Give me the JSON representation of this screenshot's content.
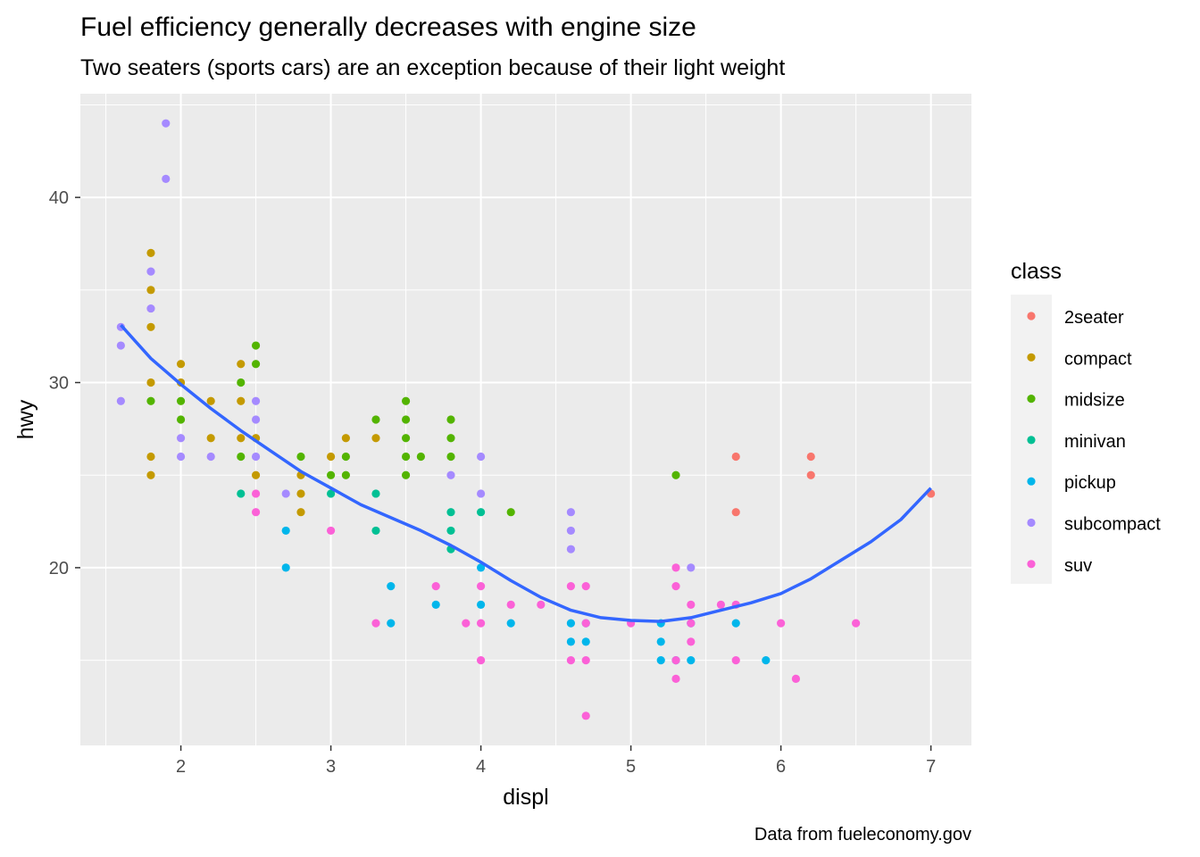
{
  "chart_data": {
    "type": "scatter",
    "title": "Fuel efficiency generally decreases with engine size",
    "subtitle": "Two seaters (sports cars) are an exception because of their light weight",
    "caption": "Data from fueleconomy.gov",
    "xlabel": "displ",
    "ylabel": "hwy",
    "xlim": [
      1.33,
      7.27
    ],
    "ylim": [
      10.4,
      45.6
    ],
    "x_ticks": [
      2,
      3,
      4,
      5,
      6,
      7
    ],
    "y_ticks": [
      20,
      30,
      40
    ],
    "grid": true,
    "background": "#EBEBEB",
    "legend": {
      "title": "class",
      "position": "right"
    },
    "series": [
      {
        "name": "2seater",
        "color": "#F8766D",
        "points": [
          [
            5.7,
            26
          ],
          [
            5.7,
            23
          ],
          [
            6.2,
            26
          ],
          [
            6.2,
            25
          ],
          [
            7.0,
            24
          ]
        ]
      },
      {
        "name": "compact",
        "color": "#C49A00",
        "points": [
          [
            1.8,
            37
          ],
          [
            1.8,
            35
          ],
          [
            1.8,
            33
          ],
          [
            1.8,
            30
          ],
          [
            1.8,
            26
          ],
          [
            1.8,
            25
          ],
          [
            2.0,
            31
          ],
          [
            2.0,
            30
          ],
          [
            2.2,
            29
          ],
          [
            2.2,
            27
          ],
          [
            2.4,
            31
          ],
          [
            2.4,
            29
          ],
          [
            2.4,
            27
          ],
          [
            2.5,
            27
          ],
          [
            2.5,
            25
          ],
          [
            2.8,
            25
          ],
          [
            2.8,
            24
          ],
          [
            2.8,
            23
          ],
          [
            3.0,
            26
          ],
          [
            3.1,
            27
          ],
          [
            3.3,
            27
          ]
        ]
      },
      {
        "name": "midsize",
        "color": "#53B400",
        "points": [
          [
            1.8,
            29
          ],
          [
            2.0,
            29
          ],
          [
            2.0,
            28
          ],
          [
            2.4,
            30
          ],
          [
            2.4,
            26
          ],
          [
            2.5,
            32
          ],
          [
            2.5,
            31
          ],
          [
            2.8,
            26
          ],
          [
            3.0,
            25
          ],
          [
            3.1,
            26
          ],
          [
            3.1,
            25
          ],
          [
            3.3,
            28
          ],
          [
            3.5,
            29
          ],
          [
            3.5,
            28
          ],
          [
            3.5,
            27
          ],
          [
            3.5,
            26
          ],
          [
            3.5,
            25
          ],
          [
            3.6,
            26
          ],
          [
            3.8,
            28
          ],
          [
            3.8,
            27
          ],
          [
            3.8,
            26
          ],
          [
            4.2,
            23
          ],
          [
            5.3,
            25
          ]
        ]
      },
      {
        "name": "minivan",
        "color": "#00C094",
        "points": [
          [
            2.4,
            24
          ],
          [
            3.0,
            24
          ],
          [
            3.3,
            24
          ],
          [
            3.3,
            22
          ],
          [
            3.8,
            23
          ],
          [
            3.8,
            22
          ],
          [
            3.8,
            21
          ],
          [
            4.0,
            23
          ]
        ]
      },
      {
        "name": "pickup",
        "color": "#00B6EB",
        "points": [
          [
            2.7,
            22
          ],
          [
            2.7,
            20
          ],
          [
            3.4,
            19
          ],
          [
            3.4,
            17
          ],
          [
            3.7,
            18
          ],
          [
            4.0,
            20
          ],
          [
            4.0,
            18
          ],
          [
            4.2,
            17
          ],
          [
            4.6,
            17
          ],
          [
            4.6,
            16
          ],
          [
            4.7,
            17
          ],
          [
            4.7,
            16
          ],
          [
            5.2,
            17
          ],
          [
            5.2,
            16
          ],
          [
            5.2,
            15
          ],
          [
            5.3,
            15
          ],
          [
            5.4,
            17
          ],
          [
            5.4,
            15
          ],
          [
            5.7,
            17
          ],
          [
            5.9,
            15
          ]
        ]
      },
      {
        "name": "subcompact",
        "color": "#A58AFF",
        "points": [
          [
            1.6,
            33
          ],
          [
            1.6,
            32
          ],
          [
            1.6,
            29
          ],
          [
            1.8,
            36
          ],
          [
            1.8,
            34
          ],
          [
            1.9,
            44
          ],
          [
            1.9,
            41
          ],
          [
            2.0,
            27
          ],
          [
            2.0,
            26
          ],
          [
            2.2,
            26
          ],
          [
            2.5,
            29
          ],
          [
            2.5,
            28
          ],
          [
            2.5,
            26
          ],
          [
            2.7,
            24
          ],
          [
            3.8,
            25
          ],
          [
            4.0,
            26
          ],
          [
            4.0,
            24
          ],
          [
            4.6,
            23
          ],
          [
            4.6,
            22
          ],
          [
            4.6,
            21
          ],
          [
            5.4,
            20
          ]
        ]
      },
      {
        "name": "suv",
        "color": "#FB61D7",
        "points": [
          [
            2.5,
            24
          ],
          [
            2.5,
            23
          ],
          [
            3.0,
            22
          ],
          [
            3.3,
            17
          ],
          [
            3.7,
            19
          ],
          [
            3.9,
            17
          ],
          [
            4.0,
            19
          ],
          [
            4.0,
            17
          ],
          [
            4.0,
            15
          ],
          [
            4.2,
            18
          ],
          [
            4.4,
            18
          ],
          [
            4.6,
            19
          ],
          [
            4.6,
            15
          ],
          [
            4.7,
            19
          ],
          [
            4.7,
            17
          ],
          [
            4.7,
            15
          ],
          [
            4.7,
            12
          ],
          [
            5.0,
            17
          ],
          [
            5.3,
            20
          ],
          [
            5.3,
            19
          ],
          [
            5.3,
            15
          ],
          [
            5.3,
            14
          ],
          [
            5.4,
            18
          ],
          [
            5.4,
            17
          ],
          [
            5.4,
            16
          ],
          [
            5.6,
            18
          ],
          [
            5.7,
            18
          ],
          [
            5.7,
            15
          ],
          [
            6.0,
            17
          ],
          [
            6.1,
            14
          ],
          [
            6.5,
            17
          ]
        ]
      }
    ],
    "smooth": {
      "color": "#3366FF",
      "points": [
        [
          1.6,
          33.1
        ],
        [
          1.8,
          31.3
        ],
        [
          2.0,
          29.9
        ],
        [
          2.2,
          28.6
        ],
        [
          2.4,
          27.4
        ],
        [
          2.6,
          26.3
        ],
        [
          2.8,
          25.2
        ],
        [
          3.0,
          24.3
        ],
        [
          3.2,
          23.4
        ],
        [
          3.4,
          22.7
        ],
        [
          3.6,
          22.0
        ],
        [
          3.8,
          21.2
        ],
        [
          4.0,
          20.3
        ],
        [
          4.2,
          19.3
        ],
        [
          4.4,
          18.4
        ],
        [
          4.6,
          17.7
        ],
        [
          4.8,
          17.3
        ],
        [
          5.0,
          17.15
        ],
        [
          5.2,
          17.1
        ],
        [
          5.4,
          17.3
        ],
        [
          5.6,
          17.7
        ],
        [
          5.8,
          18.1
        ],
        [
          6.0,
          18.6
        ],
        [
          6.2,
          19.4
        ],
        [
          6.4,
          20.4
        ],
        [
          6.6,
          21.4
        ],
        [
          6.8,
          22.6
        ],
        [
          7.0,
          24.3
        ]
      ]
    }
  }
}
